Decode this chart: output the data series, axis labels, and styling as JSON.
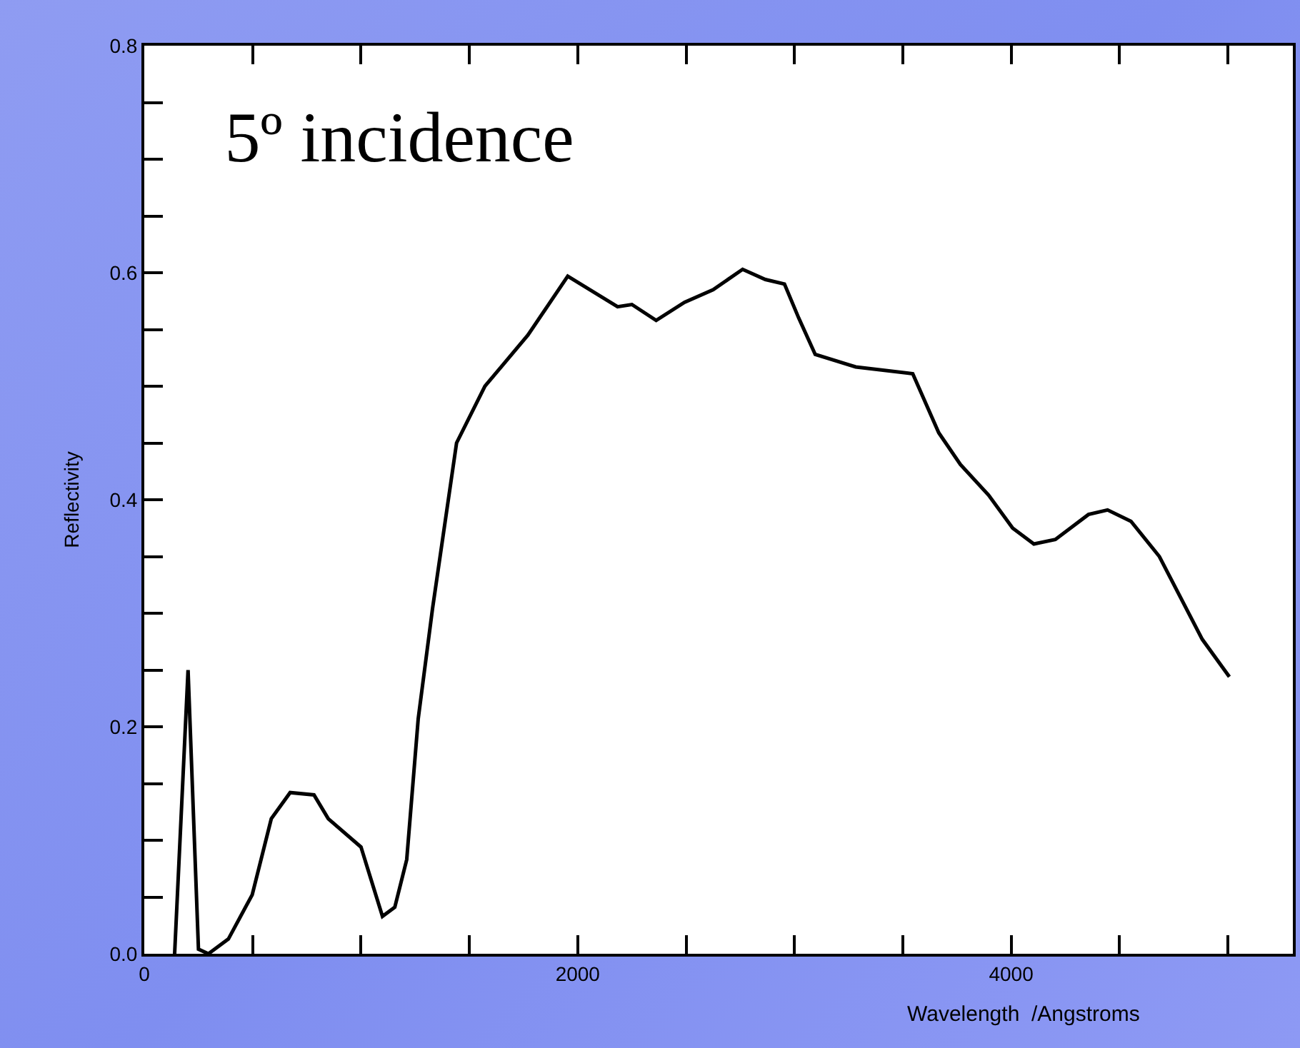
{
  "chart_data": {
    "type": "line",
    "title": "5º incidence",
    "xlabel": "Wavelength  /Angstroms",
    "ylabel": "Reflectivity",
    "xlim": [
      0,
      5300
    ],
    "ylim": [
      0,
      0.8
    ],
    "xticks": [
      0,
      {
        "value": 500,
        "label": null
      },
      {
        "value": 1000,
        "label": null
      },
      {
        "value": 1500,
        "label": null
      },
      2000,
      {
        "value": 2500,
        "label": null
      },
      {
        "value": 3000,
        "label": null
      },
      {
        "value": 3500,
        "label": null
      },
      4000,
      {
        "value": 4500,
        "label": null
      },
      {
        "value": 5000,
        "label": null
      }
    ],
    "yticks": [
      {
        "value": 0,
        "label": "0.0"
      },
      {
        "value": 0.05,
        "label": null
      },
      {
        "value": 0.1,
        "label": null
      },
      {
        "value": 0.15,
        "label": null
      },
      {
        "value": 0.2,
        "label": "0.2"
      },
      {
        "value": 0.25,
        "label": null
      },
      {
        "value": 0.3,
        "label": null
      },
      {
        "value": 0.35,
        "label": null
      },
      {
        "value": 0.4,
        "label": "0.4"
      },
      {
        "value": 0.45,
        "label": null
      },
      {
        "value": 0.5,
        "label": null
      },
      {
        "value": 0.55,
        "label": null
      },
      {
        "value": 0.6,
        "label": "0.6"
      },
      {
        "value": 0.65,
        "label": null
      },
      {
        "value": 0.7,
        "label": null
      },
      {
        "value": 0.75,
        "label": null
      },
      {
        "value": 0.8,
        "label": "0.8"
      }
    ],
    "grid": false,
    "marker": "none",
    "line_style": "solid",
    "series": [
      {
        "color": "#000000",
        "x": [
          140,
          202,
          250,
          296,
          388,
          498,
          586,
          673,
          783,
          849,
          1000,
          1099,
          1156,
          1211,
          1264,
          1330,
          1441,
          1572,
          1770,
          1954,
          2184,
          2250,
          2362,
          2493,
          2625,
          2761,
          2866,
          2954,
          3020,
          3096,
          3283,
          3546,
          3666,
          3766,
          3896,
          4007,
          4105,
          4204,
          4357,
          4445,
          4553,
          4684,
          4882,
          5007
        ],
        "values": [
          0,
          0.25,
          0.004,
          0,
          0.013,
          0.052,
          0.119,
          0.142,
          0.14,
          0.119,
          0.094,
          0.033,
          0.041,
          0.083,
          0.207,
          0.304,
          0.45,
          0.5,
          0.545,
          0.597,
          0.57,
          0.572,
          0.558,
          0.574,
          0.585,
          0.603,
          0.594,
          0.59,
          0.56,
          0.528,
          0.517,
          0.511,
          0.459,
          0.431,
          0.404,
          0.375,
          0.361,
          0.365,
          0.387,
          0.391,
          0.381,
          0.35,
          0.277,
          0.244
        ]
      }
    ]
  }
}
